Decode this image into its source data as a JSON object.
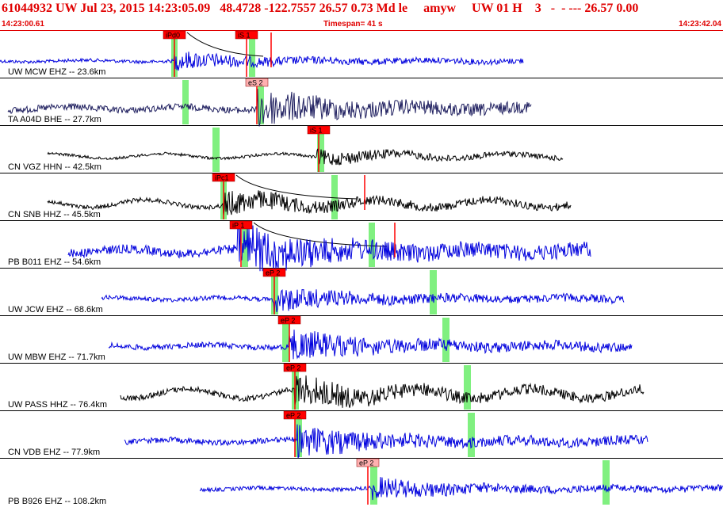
{
  "header": {
    "title": "61044932 UW Jul 23, 2015 14:23:05.09   48.4728 -122.7557 26.57 0.73 Md le     amyw     UW 01 H    3   -  - --- 26.57 0.00",
    "start_time": "14:23:00.61",
    "timespan": "Timespan=  41 s",
    "end_time": "14:23:42.04"
  },
  "colors": {
    "header_red": "#e00000",
    "pick_red": "#ff0000",
    "pick_pink": "#ffb0b0",
    "window_green": "#80f080",
    "blue": "#0000dd",
    "navy": "#202060",
    "black": "#000000"
  },
  "traces": [
    {
      "label": "UW MCW EHZ -- 23.6km",
      "color": "#0000dd",
      "amp": 6,
      "start": 0,
      "end": 660,
      "onset": 220,
      "picks": [
        {
          "label": "iPd0",
          "x": 206,
          "color": "#ff0000"
        },
        {
          "label": "iS 1",
          "x": 297,
          "color": "#ff0000"
        }
      ],
      "green": [
        216,
        314
      ],
      "green_w": 8,
      "curve": true,
      "extra_red_x": 342
    },
    {
      "label": "TA A04D BHE -- 27.7km",
      "color": "#202060",
      "amp": 12,
      "start": 10,
      "end": 670,
      "onset": 325,
      "picks": [
        {
          "label": "eS 2",
          "x": 310,
          "color": "#ffb0b0"
        }
      ],
      "green": [
        230,
        325
      ],
      "green_w": 8
    },
    {
      "label": "CN VGZ HHN -- 42.5km",
      "color": "#000000",
      "amp": 5,
      "start": 60,
      "end": 710,
      "onset": 400,
      "picks": [
        {
          "label": "iS 1",
          "x": 388,
          "color": "#ff0000"
        }
      ],
      "green": [
        268,
        400
      ],
      "green_w": 9
    },
    {
      "label": "CN SNB HHZ -- 45.5km",
      "color": "#000000",
      "amp": 8,
      "start": 60,
      "end": 720,
      "onset": 282,
      "picks": [
        {
          "label": "iPc1",
          "x": 268,
          "color": "#ff0000"
        }
      ],
      "green": [
        278,
        418
      ],
      "green_w": 8,
      "curve": true,
      "extra_red_x": 460
    },
    {
      "label": "PB B011 EHZ -- 54.6km",
      "color": "#0000dd",
      "amp": 16,
      "start": 86,
      "end": 745,
      "onset": 300,
      "picks": [
        {
          "label": "iP 1",
          "x": 290,
          "color": "#ff0000"
        }
      ],
      "green": [
        305,
        465
      ],
      "green_w": 8,
      "curve": true,
      "extra_red_x": 498
    },
    {
      "label": "UW JCW EHZ -- 68.6km",
      "color": "#0000dd",
      "amp": 8,
      "start": 128,
      "end": 787,
      "onset": 345,
      "picks": [
        {
          "label": "eP 2",
          "x": 332,
          "color": "#ff0000"
        }
      ],
      "green": [
        342,
        542
      ],
      "green_w": 9
    },
    {
      "label": "UW MBW EHZ -- 71.7km",
      "color": "#0000dd",
      "amp": 10,
      "start": 137,
      "end": 797,
      "onset": 365,
      "picks": [
        {
          "label": "eP 2",
          "x": 351,
          "color": "#ff0000"
        }
      ],
      "green": [
        356,
        558
      ],
      "green_w": 9
    },
    {
      "label": "UW PASS HHZ -- 76.4km",
      "color": "#000000",
      "amp": 10,
      "start": 152,
      "end": 812,
      "onset": 372,
      "picks": [
        {
          "label": "eP 2",
          "x": 358,
          "color": "#ff0000"
        }
      ],
      "green": [
        368,
        585
      ],
      "green_w": 9
    },
    {
      "label": "CN VDB EHZ -- 77.9km",
      "color": "#0000dd",
      "amp": 10,
      "start": 157,
      "end": 817,
      "onset": 375,
      "picks": [
        {
          "label": "eP 2",
          "x": 358,
          "color": "#ff0000"
        }
      ],
      "green": [
        372,
        590
      ],
      "green_w": 9
    },
    {
      "label": "PB B926 EHZ -- 108.2km",
      "color": "#0000dd",
      "amp": 7,
      "start": 252,
      "end": 912,
      "onset": 470,
      "picks": [
        {
          "label": "eP 2",
          "x": 450,
          "color": "#ffb0b0"
        }
      ],
      "green": [
        467,
        760
      ],
      "green_w": 9
    }
  ]
}
